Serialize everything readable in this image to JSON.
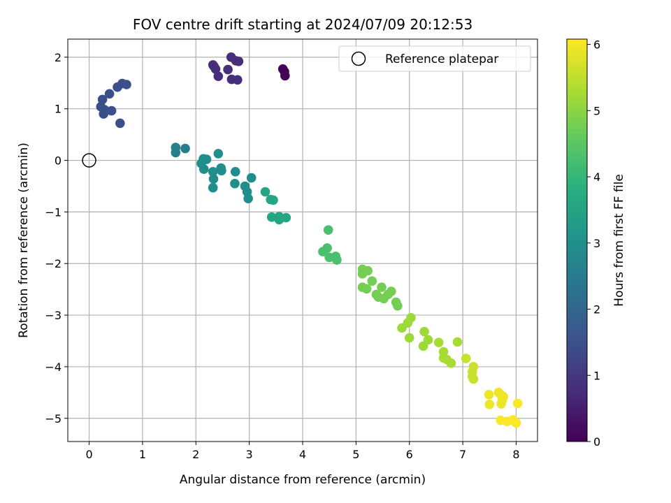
{
  "chart_data": {
    "type": "scatter",
    "title": "FOV centre drift starting at 2024/07/09 20:12:53",
    "xlabel": "Angular distance from reference (arcmin)",
    "ylabel": "Rotation from reference (arcmin)",
    "xlim": [
      -0.4,
      8.4
    ],
    "ylim": [
      -5.45,
      2.35
    ],
    "xticks": [
      0,
      1,
      2,
      3,
      4,
      5,
      6,
      7,
      8
    ],
    "yticks": [
      2,
      1,
      0,
      -1,
      -2,
      -3,
      -4,
      -5
    ],
    "grid": true,
    "legend": {
      "label": "Reference platepar",
      "position": "top-right"
    },
    "reference_point": {
      "x": 0,
      "y": 0
    },
    "colorbar": {
      "label": "Hours from first FF file",
      "colormap": "viridis",
      "range": [
        0,
        6.08
      ],
      "ticks": [
        0,
        1,
        2,
        3,
        4,
        5,
        6
      ]
    },
    "series": [
      {
        "points": [
          {
            "x": 3.63,
            "y": 1.77,
            "c": 0.05
          },
          {
            "x": 3.66,
            "y": 1.72,
            "c": 0.05
          },
          {
            "x": 3.67,
            "y": 1.64,
            "c": 0.06
          },
          {
            "x": 2.32,
            "y": 1.85,
            "c": 0.8
          },
          {
            "x": 2.34,
            "y": 1.82,
            "c": 0.8
          },
          {
            "x": 2.37,
            "y": 1.77,
            "c": 0.8
          },
          {
            "x": 2.42,
            "y": 1.63,
            "c": 0.8
          },
          {
            "x": 2.6,
            "y": 1.76,
            "c": 0.8
          },
          {
            "x": 2.66,
            "y": 2.0,
            "c": 0.8
          },
          {
            "x": 2.67,
            "y": 1.57,
            "c": 0.8
          },
          {
            "x": 2.75,
            "y": 1.93,
            "c": 0.8
          },
          {
            "x": 2.8,
            "y": 1.92,
            "c": 0.8
          },
          {
            "x": 2.78,
            "y": 1.56,
            "c": 0.8
          },
          {
            "x": 0.25,
            "y": 1.18,
            "c": 1.5
          },
          {
            "x": 0.22,
            "y": 1.04,
            "c": 1.5
          },
          {
            "x": 0.29,
            "y": 0.98,
            "c": 1.5
          },
          {
            "x": 0.27,
            "y": 0.9,
            "c": 1.5
          },
          {
            "x": 0.38,
            "y": 1.29,
            "c": 1.5
          },
          {
            "x": 0.42,
            "y": 0.96,
            "c": 1.5
          },
          {
            "x": 0.53,
            "y": 1.42,
            "c": 1.5
          },
          {
            "x": 0.62,
            "y": 1.49,
            "c": 1.5
          },
          {
            "x": 0.7,
            "y": 1.47,
            "c": 1.5
          },
          {
            "x": 0.58,
            "y": 0.72,
            "c": 1.5
          },
          {
            "x": 1.62,
            "y": 0.25,
            "c": 2.6
          },
          {
            "x": 1.62,
            "y": 0.15,
            "c": 2.6
          },
          {
            "x": 1.8,
            "y": 0.23,
            "c": 2.6
          },
          {
            "x": 2.14,
            "y": 0.03,
            "c": 3.0
          },
          {
            "x": 2.2,
            "y": 0.02,
            "c": 3.0
          },
          {
            "x": 2.1,
            "y": -0.06,
            "c": 3.0
          },
          {
            "x": 2.15,
            "y": -0.17,
            "c": 3.0
          },
          {
            "x": 2.32,
            "y": -0.22,
            "c": 3.0
          },
          {
            "x": 2.33,
            "y": -0.36,
            "c": 3.0
          },
          {
            "x": 2.32,
            "y": -0.53,
            "c": 3.0
          },
          {
            "x": 2.42,
            "y": 0.13,
            "c": 3.0
          },
          {
            "x": 2.47,
            "y": -0.15,
            "c": 3.0
          },
          {
            "x": 2.48,
            "y": -0.2,
            "c": 3.0
          },
          {
            "x": 2.74,
            "y": -0.22,
            "c": 3.0
          },
          {
            "x": 2.73,
            "y": -0.45,
            "c": 3.0
          },
          {
            "x": 2.92,
            "y": -0.5,
            "c": 3.0
          },
          {
            "x": 2.96,
            "y": -0.61,
            "c": 3.0
          },
          {
            "x": 2.98,
            "y": -0.74,
            "c": 3.0
          },
          {
            "x": 3.04,
            "y": -0.34,
            "c": 3.0
          },
          {
            "x": 3.3,
            "y": -0.61,
            "c": 3.6
          },
          {
            "x": 3.4,
            "y": -0.76,
            "c": 3.6
          },
          {
            "x": 3.45,
            "y": -0.77,
            "c": 3.6
          },
          {
            "x": 3.42,
            "y": -1.1,
            "c": 3.6
          },
          {
            "x": 3.56,
            "y": -1.15,
            "c": 3.6
          },
          {
            "x": 3.56,
            "y": -1.09,
            "c": 3.6
          },
          {
            "x": 3.69,
            "y": -1.11,
            "c": 3.6
          },
          {
            "x": 4.48,
            "y": -1.35,
            "c": 4.3
          },
          {
            "x": 4.38,
            "y": -1.77,
            "c": 4.3
          },
          {
            "x": 4.46,
            "y": -1.7,
            "c": 4.3
          },
          {
            "x": 4.5,
            "y": -1.88,
            "c": 4.3
          },
          {
            "x": 4.62,
            "y": -1.86,
            "c": 4.3
          },
          {
            "x": 4.64,
            "y": -1.93,
            "c": 4.3
          },
          {
            "x": 5.12,
            "y": -2.11,
            "c": 4.8
          },
          {
            "x": 5.12,
            "y": -2.2,
            "c": 4.8
          },
          {
            "x": 5.22,
            "y": -2.14,
            "c": 4.8
          },
          {
            "x": 5.3,
            "y": -2.34,
            "c": 4.8
          },
          {
            "x": 5.12,
            "y": -2.46,
            "c": 4.8
          },
          {
            "x": 5.2,
            "y": -2.49,
            "c": 4.8
          },
          {
            "x": 5.38,
            "y": -2.6,
            "c": 4.8
          },
          {
            "x": 5.42,
            "y": -2.65,
            "c": 4.8
          },
          {
            "x": 5.48,
            "y": -2.46,
            "c": 4.8
          },
          {
            "x": 5.52,
            "y": -2.68,
            "c": 4.8
          },
          {
            "x": 5.6,
            "y": -2.6,
            "c": 4.8
          },
          {
            "x": 5.66,
            "y": -2.54,
            "c": 4.8
          },
          {
            "x": 5.75,
            "y": -2.75,
            "c": 4.8
          },
          {
            "x": 5.78,
            "y": -2.82,
            "c": 4.8
          },
          {
            "x": 5.86,
            "y": -3.25,
            "c": 5.2
          },
          {
            "x": 5.97,
            "y": -3.15,
            "c": 5.2
          },
          {
            "x": 6.03,
            "y": -3.05,
            "c": 5.2
          },
          {
            "x": 6.0,
            "y": -3.44,
            "c": 5.2
          },
          {
            "x": 6.28,
            "y": -3.32,
            "c": 5.2
          },
          {
            "x": 6.35,
            "y": -3.48,
            "c": 5.2
          },
          {
            "x": 6.26,
            "y": -3.6,
            "c": 5.2
          },
          {
            "x": 6.55,
            "y": -3.53,
            "c": 5.3
          },
          {
            "x": 6.64,
            "y": -3.71,
            "c": 5.3
          },
          {
            "x": 6.64,
            "y": -3.83,
            "c": 5.3
          },
          {
            "x": 6.7,
            "y": -3.86,
            "c": 5.3
          },
          {
            "x": 6.78,
            "y": -3.93,
            "c": 5.3
          },
          {
            "x": 6.9,
            "y": -3.52,
            "c": 5.3
          },
          {
            "x": 7.06,
            "y": -3.84,
            "c": 5.6
          },
          {
            "x": 7.2,
            "y": -4.0,
            "c": 5.6
          },
          {
            "x": 7.18,
            "y": -4.1,
            "c": 5.6
          },
          {
            "x": 7.18,
            "y": -4.19,
            "c": 5.6
          },
          {
            "x": 7.2,
            "y": -4.24,
            "c": 5.6
          },
          {
            "x": 7.49,
            "y": -4.54,
            "c": 5.95
          },
          {
            "x": 7.5,
            "y": -4.73,
            "c": 5.95
          },
          {
            "x": 7.67,
            "y": -4.5,
            "c": 5.95
          },
          {
            "x": 7.71,
            "y": -4.54,
            "c": 5.95
          },
          {
            "x": 7.74,
            "y": -4.64,
            "c": 5.95
          },
          {
            "x": 7.76,
            "y": -4.58,
            "c": 5.95
          },
          {
            "x": 7.72,
            "y": -4.72,
            "c": 5.95
          },
          {
            "x": 7.71,
            "y": -5.04,
            "c": 6.05
          },
          {
            "x": 7.83,
            "y": -5.06,
            "c": 6.05
          },
          {
            "x": 7.94,
            "y": -5.03,
            "c": 6.05
          },
          {
            "x": 8.0,
            "y": -5.09,
            "c": 6.05
          },
          {
            "x": 8.03,
            "y": -4.71,
            "c": 6.05
          }
        ]
      }
    ]
  }
}
